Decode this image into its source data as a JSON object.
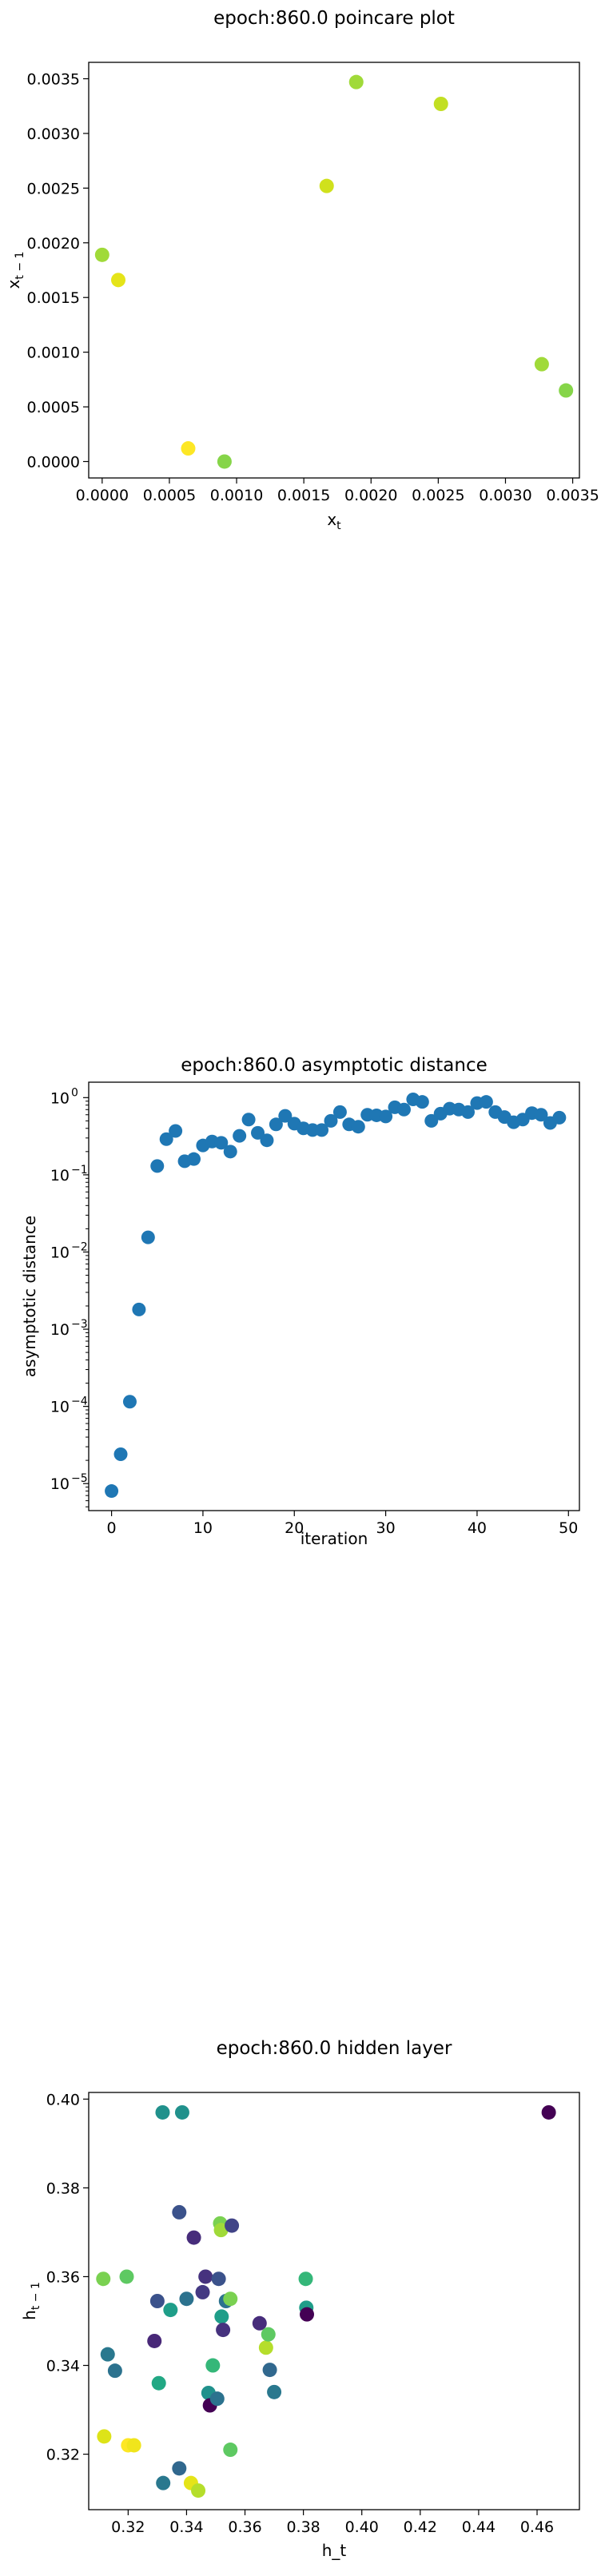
{
  "chart_data": [
    {
      "type": "scatter",
      "title": "epoch:860.0 poincare plot",
      "xlabel_main": "x",
      "xlabel_sub": "t",
      "ylabel_main": "x",
      "ylabel_sub": "t − 1",
      "xlim": [
        -0.0001,
        0.00355
      ],
      "ylim": [
        -0.00015,
        0.00365
      ],
      "xticks": [
        0.0,
        0.0005,
        0.001,
        0.0015,
        0.002,
        0.0025,
        0.003,
        0.0035
      ],
      "xtick_labels": [
        "0.0000",
        "0.0005",
        "0.0010",
        "0.0015",
        "0.0020",
        "0.0025",
        "0.0030",
        "0.0035"
      ],
      "yticks": [
        0.0,
        0.0005,
        0.001,
        0.0015,
        0.002,
        0.0025,
        0.003,
        0.0035
      ],
      "ytick_labels": [
        "0.0000",
        "0.0005",
        "0.0010",
        "0.0015",
        "0.0020",
        "0.0025",
        "0.0030",
        "0.0035"
      ],
      "grid": false,
      "points": [
        {
          "x": 0.0,
          "y": 0.00189,
          "color": "#a0da39"
        },
        {
          "x": 0.00012,
          "y": 0.00166,
          "color": "#e5e419"
        },
        {
          "x": 0.00064,
          "y": 0.00012,
          "color": "#fde725"
        },
        {
          "x": 0.00091,
          "y": 0.0,
          "color": "#86d549"
        },
        {
          "x": 0.00167,
          "y": 0.00252,
          "color": "#d0e11c"
        },
        {
          "x": 0.00189,
          "y": 0.00347,
          "color": "#a0da39"
        },
        {
          "x": 0.00252,
          "y": 0.00327,
          "color": "#c2df23"
        },
        {
          "x": 0.00327,
          "y": 0.00089,
          "color": "#a0da39"
        },
        {
          "x": 0.00345,
          "y": 0.00065,
          "color": "#86d549"
        }
      ]
    },
    {
      "type": "scatter",
      "title": "epoch:860.0 asymptotic distance",
      "xlabel": "iteration",
      "ylabel": "asymptotic distance",
      "yscale": "log",
      "xlim": [
        -2.5,
        51.2
      ],
      "ylim_log10": [
        -5.35,
        0.2
      ],
      "xticks": [
        0,
        10,
        20,
        30,
        40,
        50
      ],
      "xtick_labels": [
        "0",
        "10",
        "20",
        "30",
        "40",
        "50"
      ],
      "yticks_exp": [
        -5,
        -4,
        -3,
        -2,
        -1,
        0
      ],
      "ytick_base": "10",
      "grid": false,
      "color": "#1f77b4",
      "x": [
        0,
        1,
        2,
        3,
        4,
        5,
        6,
        7,
        8,
        9,
        10,
        11,
        12,
        13,
        14,
        15,
        16,
        17,
        18,
        19,
        20,
        21,
        22,
        23,
        24,
        25,
        26,
        27,
        28,
        29,
        30,
        31,
        32,
        33,
        34,
        35,
        36,
        37,
        38,
        39,
        40,
        41,
        42,
        43,
        44,
        45,
        46,
        47,
        48,
        49
      ],
      "y": [
        8e-06,
        2.4e-05,
        0.000115,
        0.0018,
        0.0155,
        0.13,
        0.29,
        0.37,
        0.15,
        0.16,
        0.24,
        0.27,
        0.26,
        0.2,
        0.32,
        0.52,
        0.35,
        0.28,
        0.45,
        0.58,
        0.46,
        0.4,
        0.38,
        0.38,
        0.5,
        0.65,
        0.45,
        0.42,
        0.6,
        0.59,
        0.57,
        0.75,
        0.7,
        0.95,
        0.88,
        0.5,
        0.62,
        0.72,
        0.7,
        0.65,
        0.85,
        0.88,
        0.65,
        0.56,
        0.48,
        0.52,
        0.63,
        0.6,
        0.47,
        0.55
      ]
    },
    {
      "type": "scatter",
      "title": "epoch:860.0 hidden layer",
      "xlabel": "h_t",
      "ylabel_main": "h",
      "ylabel_sub": "t − 1",
      "xlim": [
        0.3065,
        0.4745
      ],
      "ylim": [
        0.3075,
        0.4015
      ],
      "xticks": [
        0.32,
        0.34,
        0.36,
        0.38,
        0.4,
        0.42,
        0.44,
        0.46
      ],
      "xtick_labels": [
        "0.32",
        "0.34",
        "0.36",
        "0.38",
        "0.40",
        "0.42",
        "0.44",
        "0.46"
      ],
      "yticks": [
        0.32,
        0.34,
        0.36,
        0.38,
        0.4
      ],
      "ytick_labels": [
        "0.32",
        "0.34",
        "0.36",
        "0.38",
        "0.40"
      ],
      "grid": false,
      "points": [
        {
          "x": 0.3115,
          "y": 0.3595,
          "color": "#7ad151"
        },
        {
          "x": 0.3118,
          "y": 0.324,
          "color": "#dde318"
        },
        {
          "x": 0.313,
          "y": 0.3425,
          "color": "#2a788e"
        },
        {
          "x": 0.3155,
          "y": 0.3388,
          "color": "#2c728e"
        },
        {
          "x": 0.3195,
          "y": 0.36,
          "color": "#5ec962"
        },
        {
          "x": 0.32,
          "y": 0.322,
          "color": "#fde725"
        },
        {
          "x": 0.322,
          "y": 0.322,
          "color": "#f0e51c"
        },
        {
          "x": 0.329,
          "y": 0.3455,
          "color": "#482878"
        },
        {
          "x": 0.33,
          "y": 0.3545,
          "color": "#3b528b"
        },
        {
          "x": 0.3305,
          "y": 0.336,
          "color": "#22a884"
        },
        {
          "x": 0.3318,
          "y": 0.397,
          "color": "#21918c"
        },
        {
          "x": 0.332,
          "y": 0.3135,
          "color": "#2a788e"
        },
        {
          "x": 0.3345,
          "y": 0.3525,
          "color": "#1f9e89"
        },
        {
          "x": 0.3375,
          "y": 0.3168,
          "color": "#31688e"
        },
        {
          "x": 0.3375,
          "y": 0.3745,
          "color": "#3b528b"
        },
        {
          "x": 0.3385,
          "y": 0.397,
          "color": "#21918c"
        },
        {
          "x": 0.34,
          "y": 0.355,
          "color": "#2c728e"
        },
        {
          "x": 0.3415,
          "y": 0.3135,
          "color": "#e5e419"
        },
        {
          "x": 0.3425,
          "y": 0.3688,
          "color": "#472d7b"
        },
        {
          "x": 0.344,
          "y": 0.3118,
          "color": "#b5de2b"
        },
        {
          "x": 0.3455,
          "y": 0.3565,
          "color": "#443983"
        },
        {
          "x": 0.3465,
          "y": 0.36,
          "color": "#46327e"
        },
        {
          "x": 0.3475,
          "y": 0.3338,
          "color": "#21918c"
        },
        {
          "x": 0.348,
          "y": 0.331,
          "color": "#440154"
        },
        {
          "x": 0.349,
          "y": 0.34,
          "color": "#35b779"
        },
        {
          "x": 0.3505,
          "y": 0.3325,
          "color": "#2c728e"
        },
        {
          "x": 0.351,
          "y": 0.3595,
          "color": "#3b528b"
        },
        {
          "x": 0.3515,
          "y": 0.372,
          "color": "#7ad151"
        },
        {
          "x": 0.3518,
          "y": 0.3705,
          "color": "#a0da39"
        },
        {
          "x": 0.352,
          "y": 0.351,
          "color": "#1f9e89"
        },
        {
          "x": 0.3525,
          "y": 0.348,
          "color": "#46327e"
        },
        {
          "x": 0.3535,
          "y": 0.3545,
          "color": "#2c728e"
        },
        {
          "x": 0.355,
          "y": 0.321,
          "color": "#5ec962"
        },
        {
          "x": 0.355,
          "y": 0.355,
          "color": "#7ad151"
        },
        {
          "x": 0.3555,
          "y": 0.3715,
          "color": "#414487"
        },
        {
          "x": 0.365,
          "y": 0.3495,
          "color": "#472d7b"
        },
        {
          "x": 0.3672,
          "y": 0.344,
          "color": "#b5de2b"
        },
        {
          "x": 0.368,
          "y": 0.347,
          "color": "#5ec962"
        },
        {
          "x": 0.3685,
          "y": 0.339,
          "color": "#31688e"
        },
        {
          "x": 0.37,
          "y": 0.334,
          "color": "#2a788e"
        },
        {
          "x": 0.3808,
          "y": 0.3595,
          "color": "#35b779"
        },
        {
          "x": 0.381,
          "y": 0.353,
          "color": "#1f9e89"
        },
        {
          "x": 0.3812,
          "y": 0.3515,
          "color": "#440154"
        },
        {
          "x": 0.464,
          "y": 0.397,
          "color": "#440154"
        }
      ]
    }
  ]
}
